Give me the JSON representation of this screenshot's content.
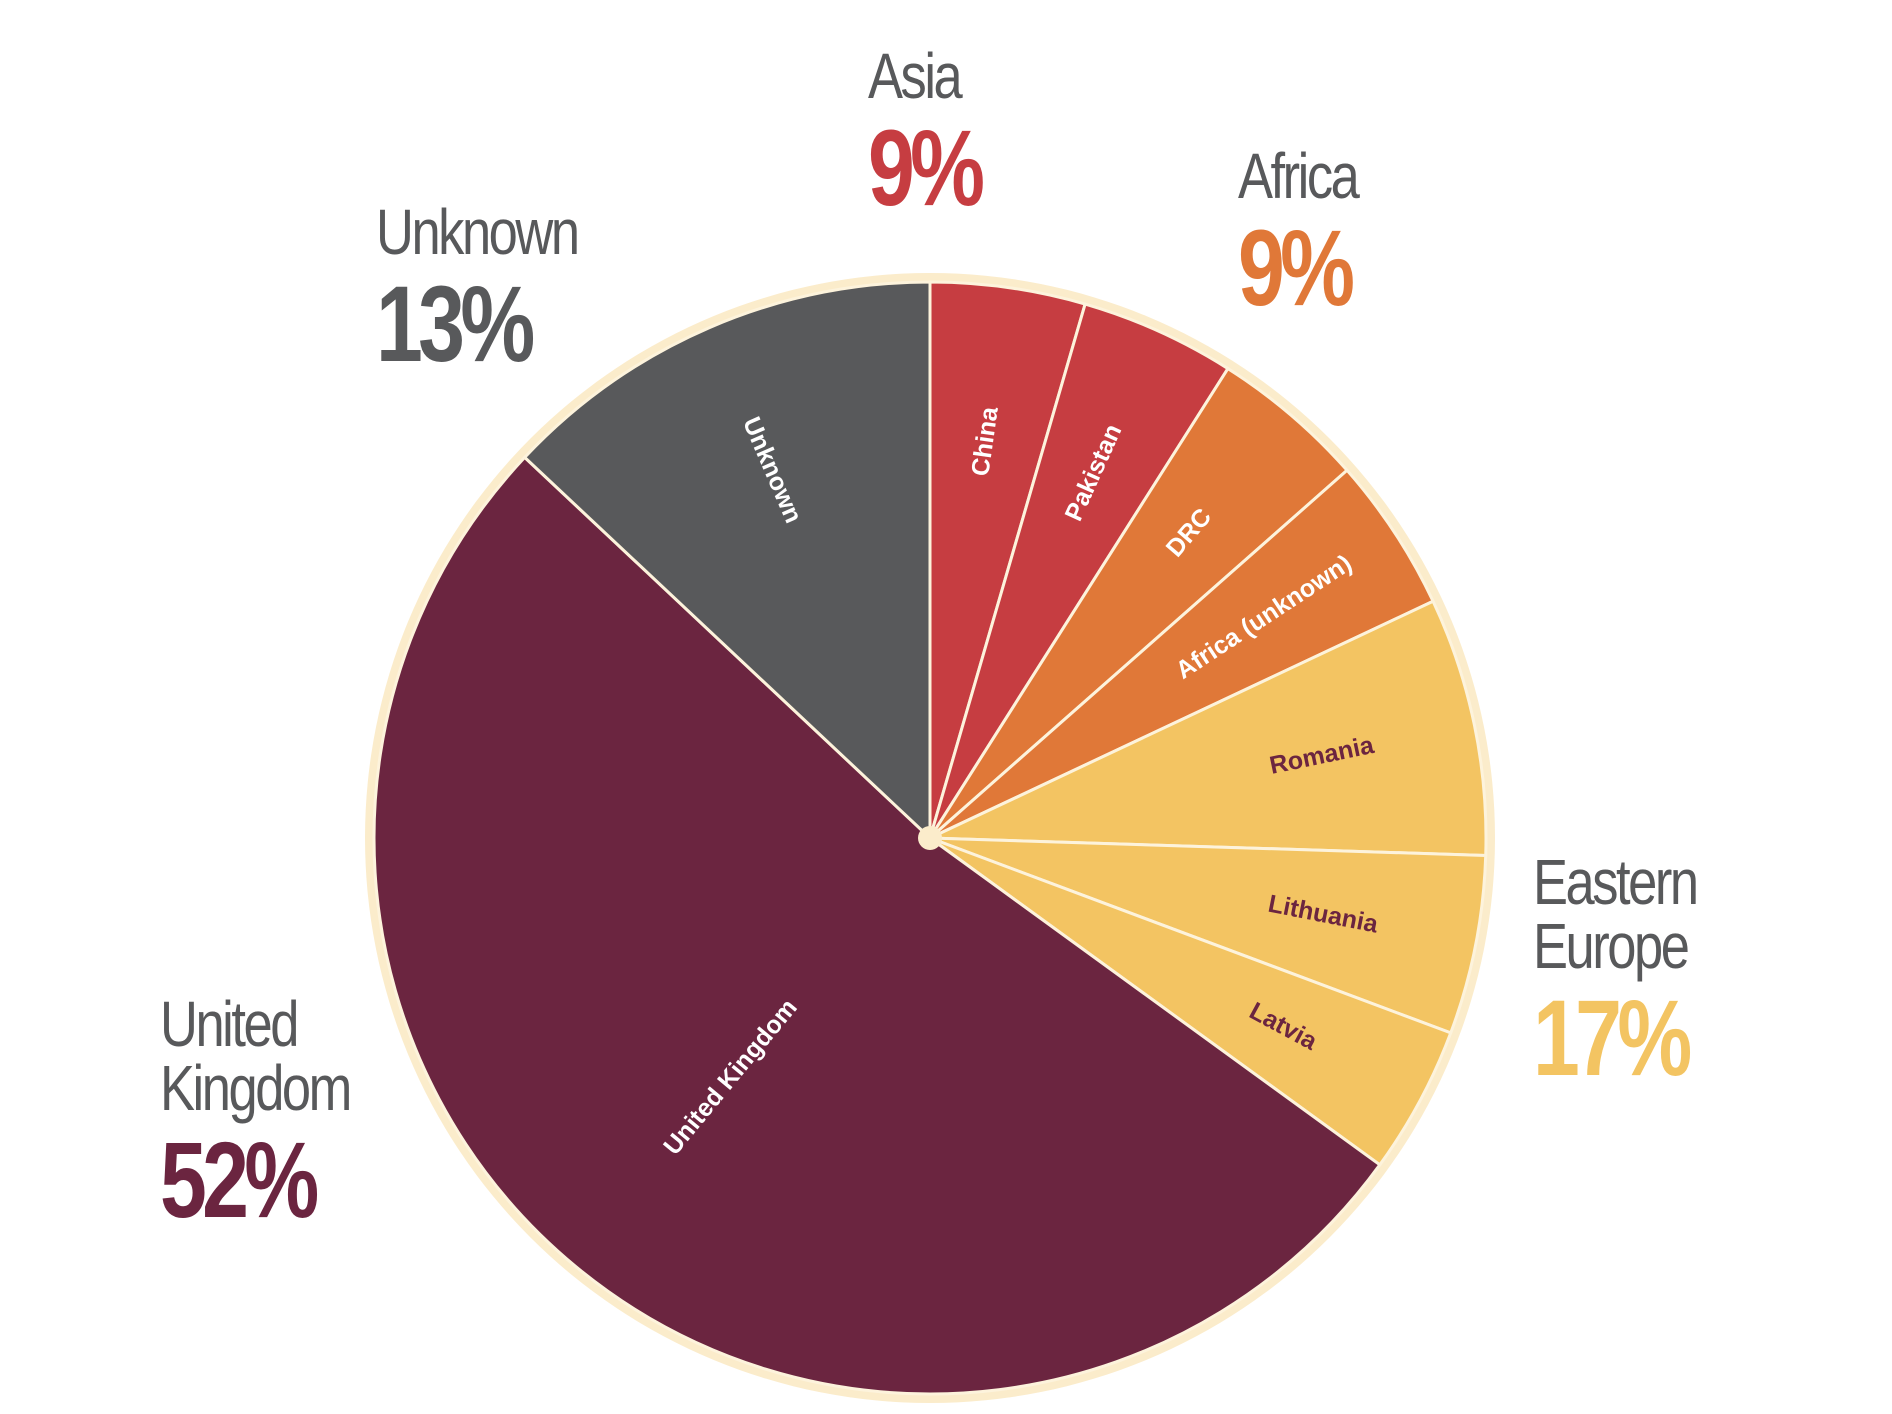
{
  "colors": {
    "background": "#ffffff",
    "rim": "#fbeccb",
    "separator": "#fdf3dc",
    "group_label": "#58595b"
  },
  "chart_data": {
    "type": "pie",
    "start_angle_deg": 0,
    "direction": "clockwise",
    "slices": [
      {
        "label": "China",
        "value": 4.5,
        "group": "Asia",
        "color": "#c63d41",
        "text_color": "#ffffff"
      },
      {
        "label": "Pakistan",
        "value": 4.5,
        "group": "Asia",
        "color": "#c63d41",
        "text_color": "#ffffff"
      },
      {
        "label": "DRC",
        "value": 4.5,
        "group": "Africa",
        "color": "#e07838",
        "text_color": "#ffffff"
      },
      {
        "label": "Africa (unknown)",
        "value": 4.5,
        "group": "Africa",
        "color": "#e07838",
        "text_color": "#ffffff"
      },
      {
        "label": "Romania",
        "value": 7.5,
        "group": "Eastern Europe",
        "color": "#f3c462",
        "text_color": "#6b2540"
      },
      {
        "label": "Lithuania",
        "value": 5.2,
        "group": "Eastern Europe",
        "color": "#f3c462",
        "text_color": "#6b2540"
      },
      {
        "label": "Latvia",
        "value": 4.3,
        "group": "Eastern Europe",
        "color": "#f3c462",
        "text_color": "#6b2540"
      },
      {
        "label": "United Kingdom",
        "value": 52,
        "group": "United Kingdom",
        "color": "#6b2540",
        "text_color": "#ffffff"
      },
      {
        "label": "Unknown",
        "value": 13,
        "group": "Unknown",
        "color": "#58595b",
        "text_color": "#ffffff"
      }
    ],
    "groups": [
      {
        "name_lines": [
          "Asia"
        ],
        "percent": "9%",
        "color": "#c63d41"
      },
      {
        "name_lines": [
          "Africa"
        ],
        "percent": "9%",
        "color": "#e07838"
      },
      {
        "name_lines": [
          "Eastern",
          "Europe"
        ],
        "percent": "17%",
        "color": "#f3c462"
      },
      {
        "name_lines": [
          "United",
          "Kingdom"
        ],
        "percent": "52%",
        "color": "#6b2540"
      },
      {
        "name_lines": [
          "Unknown"
        ],
        "percent": "13%",
        "color": "#58595b"
      }
    ]
  }
}
